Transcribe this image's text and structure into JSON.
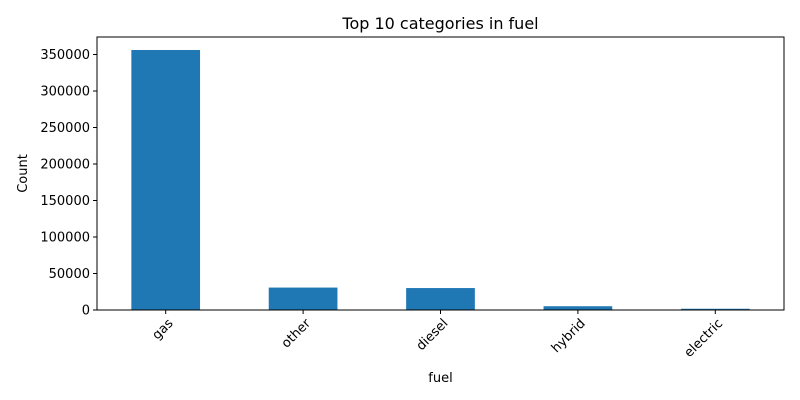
{
  "chart_data": {
    "type": "bar",
    "title": "Top 10 categories in fuel",
    "xlabel": "fuel",
    "ylabel": "Count",
    "categories": [
      "gas",
      "other",
      "diesel",
      "hybrid",
      "electric"
    ],
    "values": [
      356209,
      30728,
      30062,
      5170,
      1698
    ],
    "ylim": [
      0,
      374000
    ],
    "yticks": [
      0,
      50000,
      100000,
      150000,
      200000,
      250000,
      300000,
      350000
    ],
    "ytick_labels": [
      "0",
      "50000",
      "100000",
      "150000",
      "200000",
      "250000",
      "300000",
      "350000"
    ],
    "bar_color": "#1f77b4",
    "grid": false,
    "legend": "none"
  }
}
